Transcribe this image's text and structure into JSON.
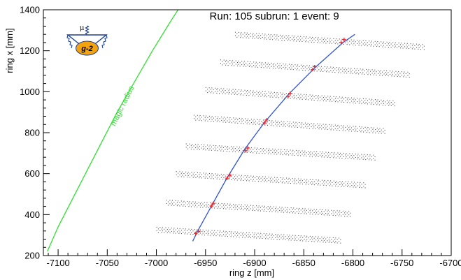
{
  "chart_data": {
    "type": "scatter",
    "annotation": "Run: 105 subrun: 1 event: 9",
    "xlabel": "ring z [mm]",
    "ylabel": "ring x [mm]",
    "xlim": [
      -7115,
      -6700
    ],
    "ylim": [
      200,
      1400
    ],
    "xticks": [
      -7100,
      -7050,
      -7000,
      -6950,
      -6900,
      -6850,
      -6800,
      -6750,
      -6700
    ],
    "yticks": [
      200,
      400,
      600,
      800,
      1000,
      1200,
      1400
    ],
    "grid": false,
    "magic_radius": {
      "label": "magic radius",
      "color": "#33dd33",
      "points": [
        [
          -7111,
          220
        ],
        [
          -7100,
          340
        ],
        [
          -7085,
          480
        ],
        [
          -7070,
          620
        ],
        [
          -7055,
          760
        ],
        [
          -7040,
          900
        ],
        [
          -7022,
          1050
        ],
        [
          -7004,
          1200
        ],
        [
          -6986,
          1340
        ],
        [
          -6978,
          1400
        ]
      ]
    },
    "track_fit": {
      "color": "#3355cc",
      "points": [
        [
          -6963,
          270
        ],
        [
          -6958,
          320
        ],
        [
          -6943,
          450
        ],
        [
          -6928,
          580
        ],
        [
          -6910,
          720
        ],
        [
          -6890,
          850
        ],
        [
          -6865,
          990
        ],
        [
          -6838,
          1120
        ],
        [
          -6810,
          1240
        ],
        [
          -6798,
          1280
        ]
      ]
    },
    "hits": {
      "color": "#ff2222",
      "points": [
        [
          -6960,
          308
        ],
        [
          -6957,
          318
        ],
        [
          -6944,
          442
        ],
        [
          -6942,
          455
        ],
        [
          -6928,
          578
        ],
        [
          -6925,
          592
        ],
        [
          -6909,
          712
        ],
        [
          -6907,
          725
        ],
        [
          -6890,
          848
        ],
        [
          -6888,
          862
        ],
        [
          -6866,
          978
        ],
        [
          -6864,
          992
        ],
        [
          -6841,
          1108
        ],
        [
          -6839,
          1122
        ],
        [
          -6812,
          1240
        ],
        [
          -6809,
          1255
        ]
      ]
    },
    "straw_stations": [
      {
        "z_start": -7000,
        "z_end": -6815,
        "x_start": 328,
        "x_end": 275
      },
      {
        "z_start": -6990,
        "z_end": -6805,
        "x_start": 460,
        "x_end": 405
      },
      {
        "z_start": -6980,
        "z_end": -6790,
        "x_start": 600,
        "x_end": 545
      },
      {
        "z_start": -6970,
        "z_end": -6780,
        "x_start": 735,
        "x_end": 680
      },
      {
        "z_start": -6962,
        "z_end": -6770,
        "x_start": 875,
        "x_end": 810
      },
      {
        "z_start": -6950,
        "z_end": -6760,
        "x_start": 1010,
        "x_end": 945
      },
      {
        "z_start": -6935,
        "z_end": -6745,
        "x_start": 1145,
        "x_end": 1085
      },
      {
        "z_start": -6920,
        "z_end": -6730,
        "x_start": 1280,
        "x_end": 1220
      }
    ]
  },
  "logo": {
    "mu_label": "μ",
    "text": "g-2",
    "color": "#f2a30f"
  }
}
